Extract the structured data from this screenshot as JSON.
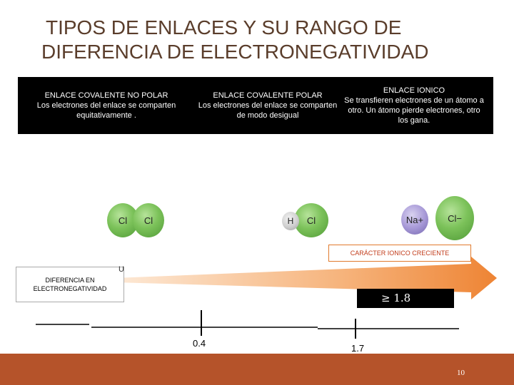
{
  "title": {
    "line1": "TIPOS DE ENLACES Y SU RANGO DE",
    "line2": "DIFERENCIA DE ELECTRONEGATIVIDAD"
  },
  "bonds": [
    {
      "heading": "ENLACE COVALENTE NO POLAR",
      "description": "Los electrones del enlace se comparten equitativamente ."
    },
    {
      "heading": "ENLACE COVALENTE  POLAR",
      "description": "Los electrones del enlace se comparten de modo desigual"
    },
    {
      "heading": "ENLACE IONICO",
      "description": "Se transfieren electrones de un átomo a otro. Un átomo pierde electrones, otro  los gana."
    }
  ],
  "molecules": {
    "nonpolar": [
      "Cl",
      "Cl"
    ],
    "polar": [
      "H",
      "Cl"
    ],
    "ionic": [
      "Na+",
      "Cl−"
    ]
  },
  "arrow_label": "CARÁCTER IONICO CRECIENTE",
  "diff_label": {
    "line1": "DIFERENCIA EN",
    "line2": "ELECTRONEGATIVIDAD"
  },
  "stray_letter": "U",
  "threshold": "≥   1.8",
  "ticks": [
    "0.4",
    "1.7"
  ],
  "page_number": "10",
  "colors": {
    "title": "#5a3d2b",
    "footer": "#b5532a",
    "arrow": "#f08a3a",
    "label_red": "#c23b1a"
  }
}
